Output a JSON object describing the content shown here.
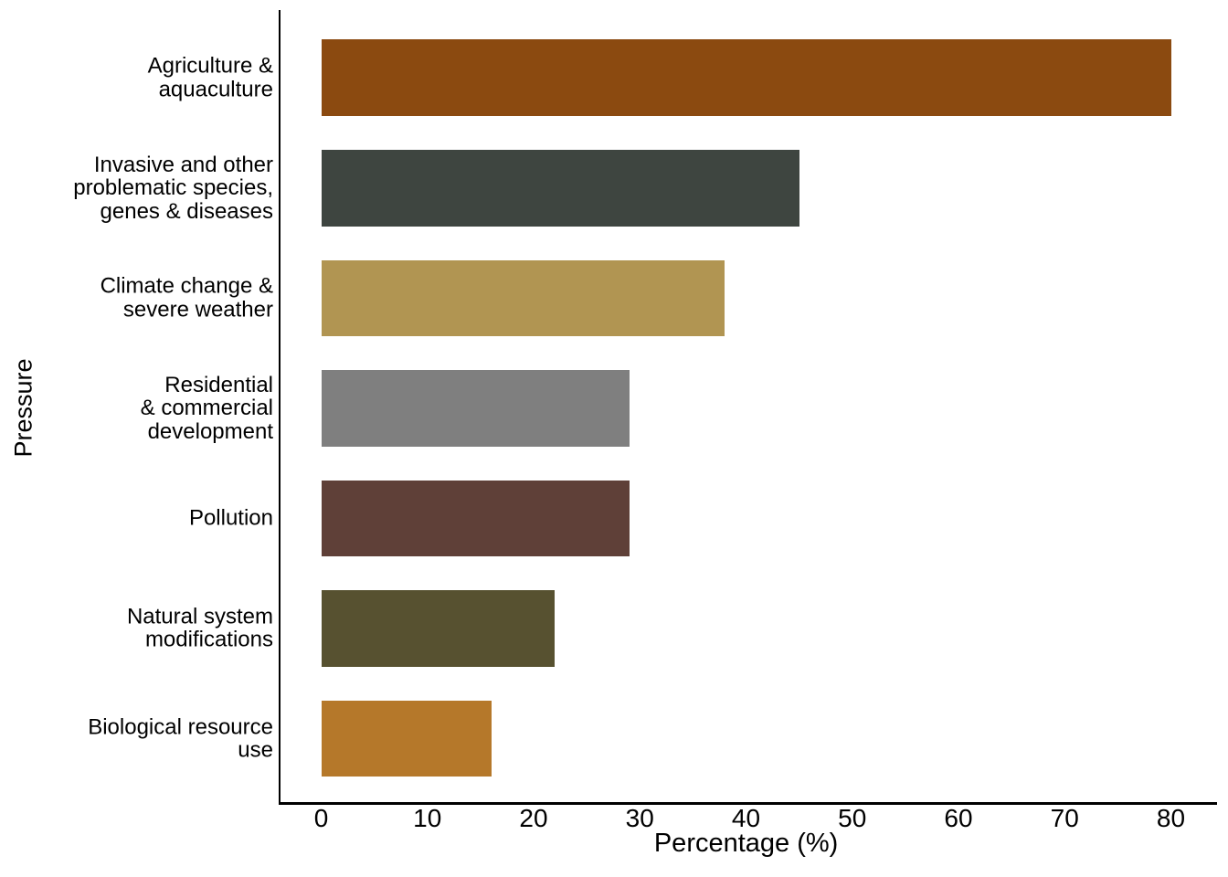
{
  "chart_data": {
    "type": "bar",
    "orientation": "horizontal",
    "xlabel": "Percentage (%)",
    "ylabel": "Pressure",
    "categories": [
      "Agriculture &\naquaculture",
      "Invasive and other\nproblematic species,\ngenes & diseases",
      "Climate change &\nsevere weather",
      "Residential\n& commercial\ndevelopment",
      "Pollution",
      "Natural system\nmodifications",
      "Biological resource\nuse"
    ],
    "values": [
      80,
      45,
      38,
      29,
      29,
      22,
      16
    ],
    "bar_colors": [
      "#8B4A10",
      "#3E4540",
      "#B19552",
      "#7F7F7F",
      "#5F4038",
      "#575130",
      "#B5782A"
    ],
    "x_ticks": [
      0,
      10,
      20,
      30,
      40,
      50,
      60,
      70,
      80
    ],
    "xlim": [
      0,
      80
    ],
    "grid": false,
    "legend": false,
    "axis_color": "#000000",
    "background": "#FFFFFF"
  }
}
